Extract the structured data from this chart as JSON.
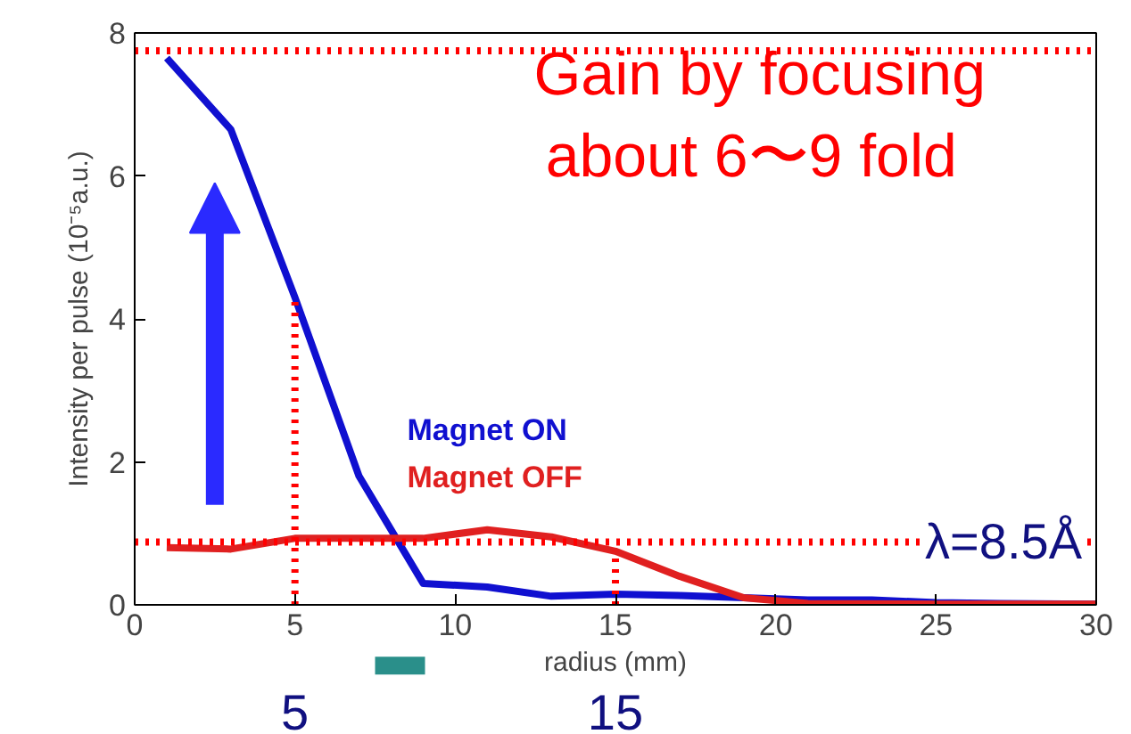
{
  "chart_data": {
    "type": "line",
    "xlabel": "radius (mm)",
    "ylabel": "Intensity per pulse (10⁻⁵a.u.)",
    "xlim": [
      0,
      30
    ],
    "ylim": [
      0,
      8
    ],
    "xticks": [
      0,
      5,
      10,
      15,
      20,
      25,
      30
    ],
    "yticks": [
      0,
      2,
      4,
      6,
      8
    ],
    "grid": false,
    "legend": false,
    "marker": "none",
    "line_style": "solid",
    "series": [
      {
        "name": "Magnet ON",
        "color": "#1010d0",
        "x": [
          1,
          3,
          5,
          7,
          9,
          11,
          13,
          15,
          17,
          19,
          21,
          23,
          25,
          27,
          30
        ],
        "values": [
          7.65,
          6.65,
          4.3,
          1.8,
          0.3,
          0.25,
          0.12,
          0.15,
          0.13,
          0.1,
          0.07,
          0.07,
          0.03,
          0.02,
          0.01
        ]
      },
      {
        "name": "Magnet OFF",
        "color": "#e02020",
        "x": [
          1,
          3,
          5,
          7,
          9,
          11,
          13,
          15,
          17,
          19,
          21,
          25,
          30
        ],
        "values": [
          0.8,
          0.78,
          0.93,
          0.93,
          0.93,
          1.05,
          0.95,
          0.75,
          0.4,
          0.1,
          0.02,
          0.01,
          0.01
        ]
      }
    ],
    "ref_lines": [
      {
        "axis": "y",
        "value": 7.75,
        "color": "#ff0000",
        "line_style": "dotted"
      },
      {
        "axis": "y",
        "value": 0.88,
        "color": "#ff0000",
        "line_style": "dotted"
      },
      {
        "axis": "x",
        "value": 5,
        "label": "5",
        "color": "#ff0000",
        "line_style": "dotted"
      },
      {
        "axis": "x",
        "value": 15,
        "label": "15",
        "color": "#ff0000",
        "line_style": "dotted"
      }
    ],
    "annotations": [
      "Gain by focusing\n about 6〜9 fold",
      "λ=8.5Å"
    ]
  }
}
